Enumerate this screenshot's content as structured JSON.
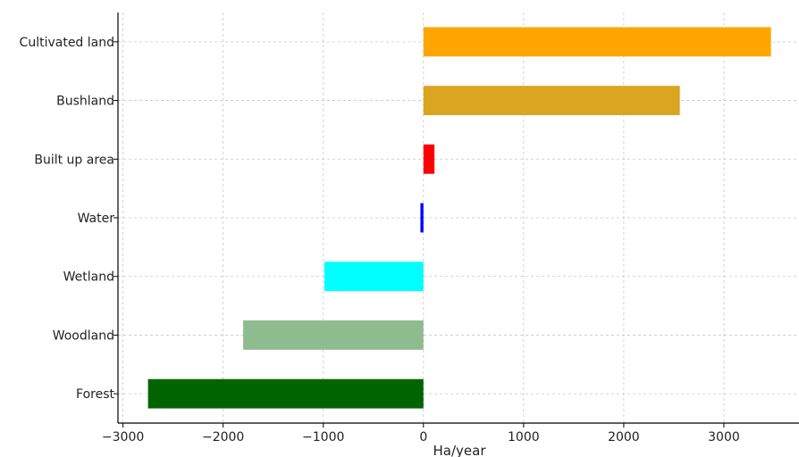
{
  "chart_data": {
    "type": "bar",
    "orientation": "horizontal",
    "categories": [
      "Forest",
      "Woodland",
      "Wetland",
      "Water",
      "Built up area",
      "Bushland",
      "Cultivated land"
    ],
    "values": [
      -2750,
      -1800,
      -990,
      -30,
      110,
      2560,
      3470
    ],
    "colors": [
      "#006400",
      "#8fbc8f",
      "#00ffff",
      "#0000ff",
      "#ff0000",
      "#daa520",
      "#ffa500"
    ],
    "xlabel": "Ha/year",
    "ylabel": "",
    "title": "",
    "xlim": [
      -3050,
      3750
    ],
    "xticks": [
      -3000,
      -2000,
      -1000,
      0,
      1000,
      2000,
      3000
    ],
    "xtick_labels": [
      "−3000",
      "−2000",
      "−1000",
      "0",
      "1000",
      "2000",
      "3000"
    ],
    "grid": true
  }
}
